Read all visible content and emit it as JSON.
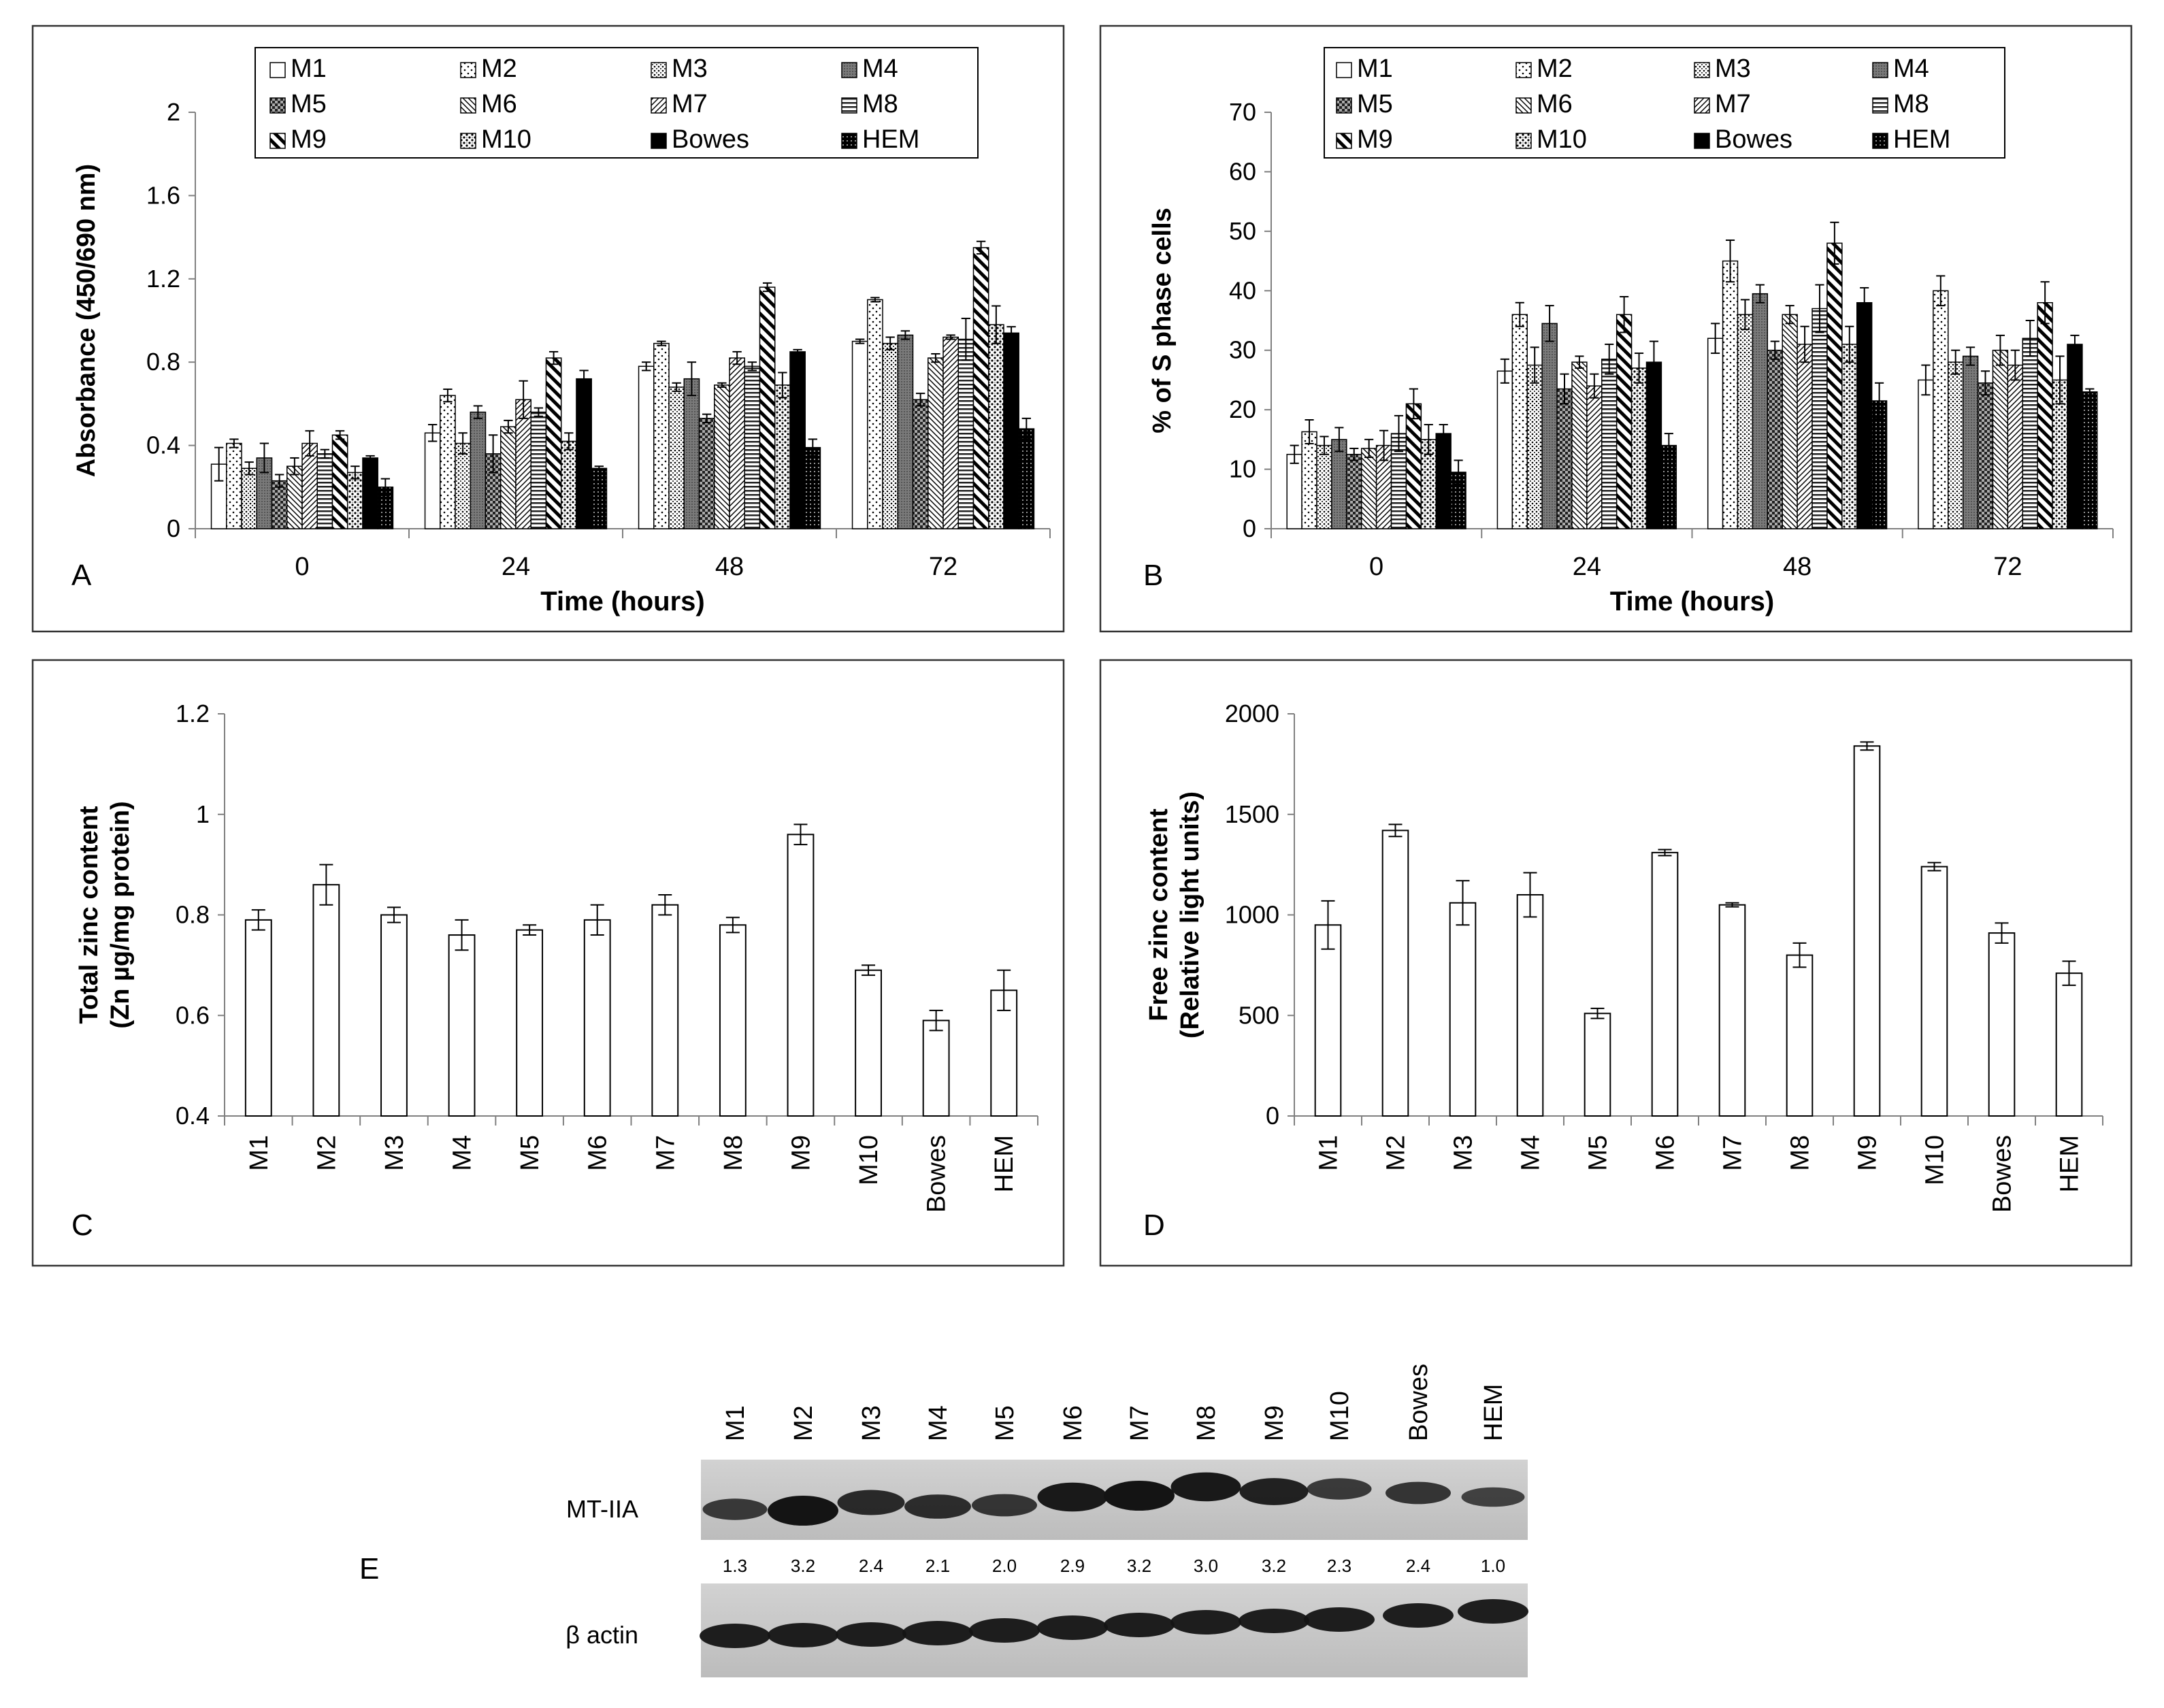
{
  "chart_data": [
    {
      "panel": "A",
      "type": "bar",
      "xlabel": "Time (hours)",
      "ylabel": "Absorbance (450/690 nm)",
      "ylim": [
        0,
        2
      ],
      "yticks": [
        "0",
        "0.4",
        "0.8",
        "1.2",
        "1.6",
        "2"
      ],
      "categories": [
        "0",
        "24",
        "48",
        "72"
      ],
      "legend_position": "top",
      "series": [
        {
          "name": "M1",
          "pattern": "white",
          "values": [
            0.31,
            0.46,
            0.78,
            0.9
          ],
          "errors": [
            0.08,
            0.04,
            0.02,
            0.01
          ]
        },
        {
          "name": "M2",
          "pattern": "sparse-dots",
          "values": [
            0.41,
            0.64,
            0.89,
            1.1
          ],
          "errors": [
            0.02,
            0.03,
            0.01,
            0.01
          ]
        },
        {
          "name": "M3",
          "pattern": "dots",
          "values": [
            0.29,
            0.41,
            0.68,
            0.89
          ],
          "errors": [
            0.03,
            0.05,
            0.02,
            0.03
          ]
        },
        {
          "name": "M4",
          "pattern": "gray",
          "values": [
            0.34,
            0.56,
            0.72,
            0.93
          ],
          "errors": [
            0.07,
            0.03,
            0.08,
            0.02
          ]
        },
        {
          "name": "M5",
          "pattern": "checker",
          "values": [
            0.23,
            0.36,
            0.53,
            0.62
          ],
          "errors": [
            0.03,
            0.09,
            0.02,
            0.03
          ]
        },
        {
          "name": "M6",
          "pattern": "diag-back",
          "values": [
            0.3,
            0.49,
            0.69,
            0.82
          ],
          "errors": [
            0.04,
            0.03,
            0.01,
            0.02
          ]
        },
        {
          "name": "M7",
          "pattern": "diag-fwd",
          "values": [
            0.41,
            0.62,
            0.82,
            0.92
          ],
          "errors": [
            0.06,
            0.09,
            0.03,
            0.01
          ]
        },
        {
          "name": "M8",
          "pattern": "horizontal",
          "values": [
            0.36,
            0.56,
            0.78,
            0.91
          ],
          "errors": [
            0.02,
            0.02,
            0.02,
            0.1
          ]
        },
        {
          "name": "M9",
          "pattern": "wide-diag-back",
          "values": [
            0.45,
            0.82,
            1.16,
            1.35
          ],
          "errors": [
            0.02,
            0.03,
            0.02,
            0.03
          ]
        },
        {
          "name": "M10",
          "pattern": "cross-dots",
          "values": [
            0.27,
            0.42,
            0.69,
            0.98
          ],
          "errors": [
            0.03,
            0.04,
            0.06,
            0.09
          ]
        },
        {
          "name": "Bowes",
          "pattern": "black",
          "values": [
            0.34,
            0.72,
            0.85,
            0.94
          ],
          "errors": [
            0.01,
            0.04,
            0.01,
            0.03
          ]
        },
        {
          "name": "HEM",
          "pattern": "black-dots",
          "values": [
            0.2,
            0.29,
            0.39,
            0.48
          ],
          "errors": [
            0.04,
            0.01,
            0.04,
            0.05
          ]
        }
      ]
    },
    {
      "panel": "B",
      "type": "bar",
      "xlabel": "Time (hours)",
      "ylabel": "% of S phase cells",
      "ylim": [
        0,
        70
      ],
      "yticks": [
        "0",
        "10",
        "20",
        "30",
        "40",
        "50",
        "60",
        "70"
      ],
      "categories": [
        "0",
        "24",
        "48",
        "72"
      ],
      "legend_position": "top",
      "series": [
        {
          "name": "M1",
          "pattern": "white",
          "values": [
            12.5,
            26.5,
            32,
            25
          ],
          "errors": [
            1.5,
            2,
            2.5,
            2.5
          ]
        },
        {
          "name": "M2",
          "pattern": "sparse-dots",
          "values": [
            16.3,
            36,
            45,
            40
          ],
          "errors": [
            2,
            2,
            3.5,
            2.5
          ]
        },
        {
          "name": "M3",
          "pattern": "dots",
          "values": [
            14,
            27.5,
            36,
            28
          ],
          "errors": [
            1.5,
            3,
            2.5,
            2
          ]
        },
        {
          "name": "M4",
          "pattern": "gray",
          "values": [
            15,
            34.5,
            39.5,
            29
          ],
          "errors": [
            2,
            3,
            1.5,
            1.5
          ]
        },
        {
          "name": "M5",
          "pattern": "checker",
          "values": [
            12.5,
            23.5,
            30,
            24.5
          ],
          "errors": [
            1,
            2.5,
            1.5,
            2
          ]
        },
        {
          "name": "M6",
          "pattern": "diag-back",
          "values": [
            13.5,
            28,
            36,
            30
          ],
          "errors": [
            1.5,
            1,
            1.5,
            2.5
          ]
        },
        {
          "name": "M7",
          "pattern": "diag-fwd",
          "values": [
            14,
            24,
            31,
            27.5
          ],
          "errors": [
            2.5,
            2,
            3,
            2.5
          ]
        },
        {
          "name": "M8",
          "pattern": "horizontal",
          "values": [
            16,
            28.5,
            37,
            32
          ],
          "errors": [
            3,
            2.5,
            4,
            3
          ]
        },
        {
          "name": "M9",
          "pattern": "wide-diag-back",
          "values": [
            21,
            36,
            48,
            38
          ],
          "errors": [
            2.5,
            3,
            3.5,
            3.5
          ]
        },
        {
          "name": "M10",
          "pattern": "cross-dots",
          "values": [
            15,
            27,
            31,
            25
          ],
          "errors": [
            2.5,
            2.5,
            3,
            4
          ]
        },
        {
          "name": "Bowes",
          "pattern": "black",
          "values": [
            16,
            28,
            38,
            31
          ],
          "errors": [
            1.5,
            3.5,
            2.5,
            1.5
          ]
        },
        {
          "name": "HEM",
          "pattern": "black-dots",
          "values": [
            9.5,
            14,
            21.5,
            23
          ],
          "errors": [
            2,
            2,
            3,
            0.5
          ]
        }
      ]
    },
    {
      "panel": "C",
      "type": "bar",
      "xlabel": "",
      "ylabel_line1": "Total zinc content",
      "ylabel_line2": "(Zn µg/mg protein)",
      "ylim": [
        0.4,
        1.2
      ],
      "yticks": [
        "0.4",
        "0.6",
        "0.8",
        "1",
        "1.2"
      ],
      "categories": [
        "M1",
        "M2",
        "M3",
        "M4",
        "M5",
        "M6",
        "M7",
        "M8",
        "M9",
        "M10",
        "Bowes",
        "HEM"
      ],
      "values": [
        0.79,
        0.86,
        0.8,
        0.76,
        0.77,
        0.79,
        0.82,
        0.78,
        0.96,
        0.69,
        0.59,
        0.65
      ],
      "errors": [
        0.02,
        0.04,
        0.015,
        0.03,
        0.01,
        0.03,
        0.02,
        0.015,
        0.02,
        0.01,
        0.02,
        0.04
      ]
    },
    {
      "panel": "D",
      "type": "bar",
      "xlabel": "",
      "ylabel_line1": "Free zinc content",
      "ylabel_line2": "(Relative light units)",
      "ylim": [
        0,
        2000
      ],
      "yticks": [
        "0",
        "500",
        "1000",
        "1500",
        "2000"
      ],
      "categories": [
        "M1",
        "M2",
        "M3",
        "M4",
        "M5",
        "M6",
        "M7",
        "M8",
        "M9",
        "M10",
        "Bowes",
        "HEM"
      ],
      "values": [
        950,
        1420,
        1060,
        1100,
        510,
        1310,
        1050,
        800,
        1840,
        1240,
        910,
        710
      ],
      "errors": [
        120,
        30,
        110,
        110,
        25,
        15,
        10,
        60,
        20,
        20,
        50,
        60
      ]
    }
  ],
  "blot": {
    "panel": "E",
    "lanes": [
      "M1",
      "M2",
      "M3",
      "M4",
      "M5",
      "M6",
      "M7",
      "M8",
      "M9",
      "M10",
      "Bowes",
      "HEM"
    ],
    "row1_label": "MT-IIA",
    "row2_label": "β actin",
    "ratios": [
      "1.3",
      "3.2",
      "2.4",
      "2.1",
      "2.0",
      "2.9",
      "3.2",
      "3.0",
      "3.2",
      "2.3",
      "2.4",
      "1.0"
    ]
  },
  "colors": {
    "bar_stroke": "#000000",
    "axis": "#808080",
    "text": "#000000",
    "blot_bg": "#c6c6c6",
    "band": "#141414"
  }
}
